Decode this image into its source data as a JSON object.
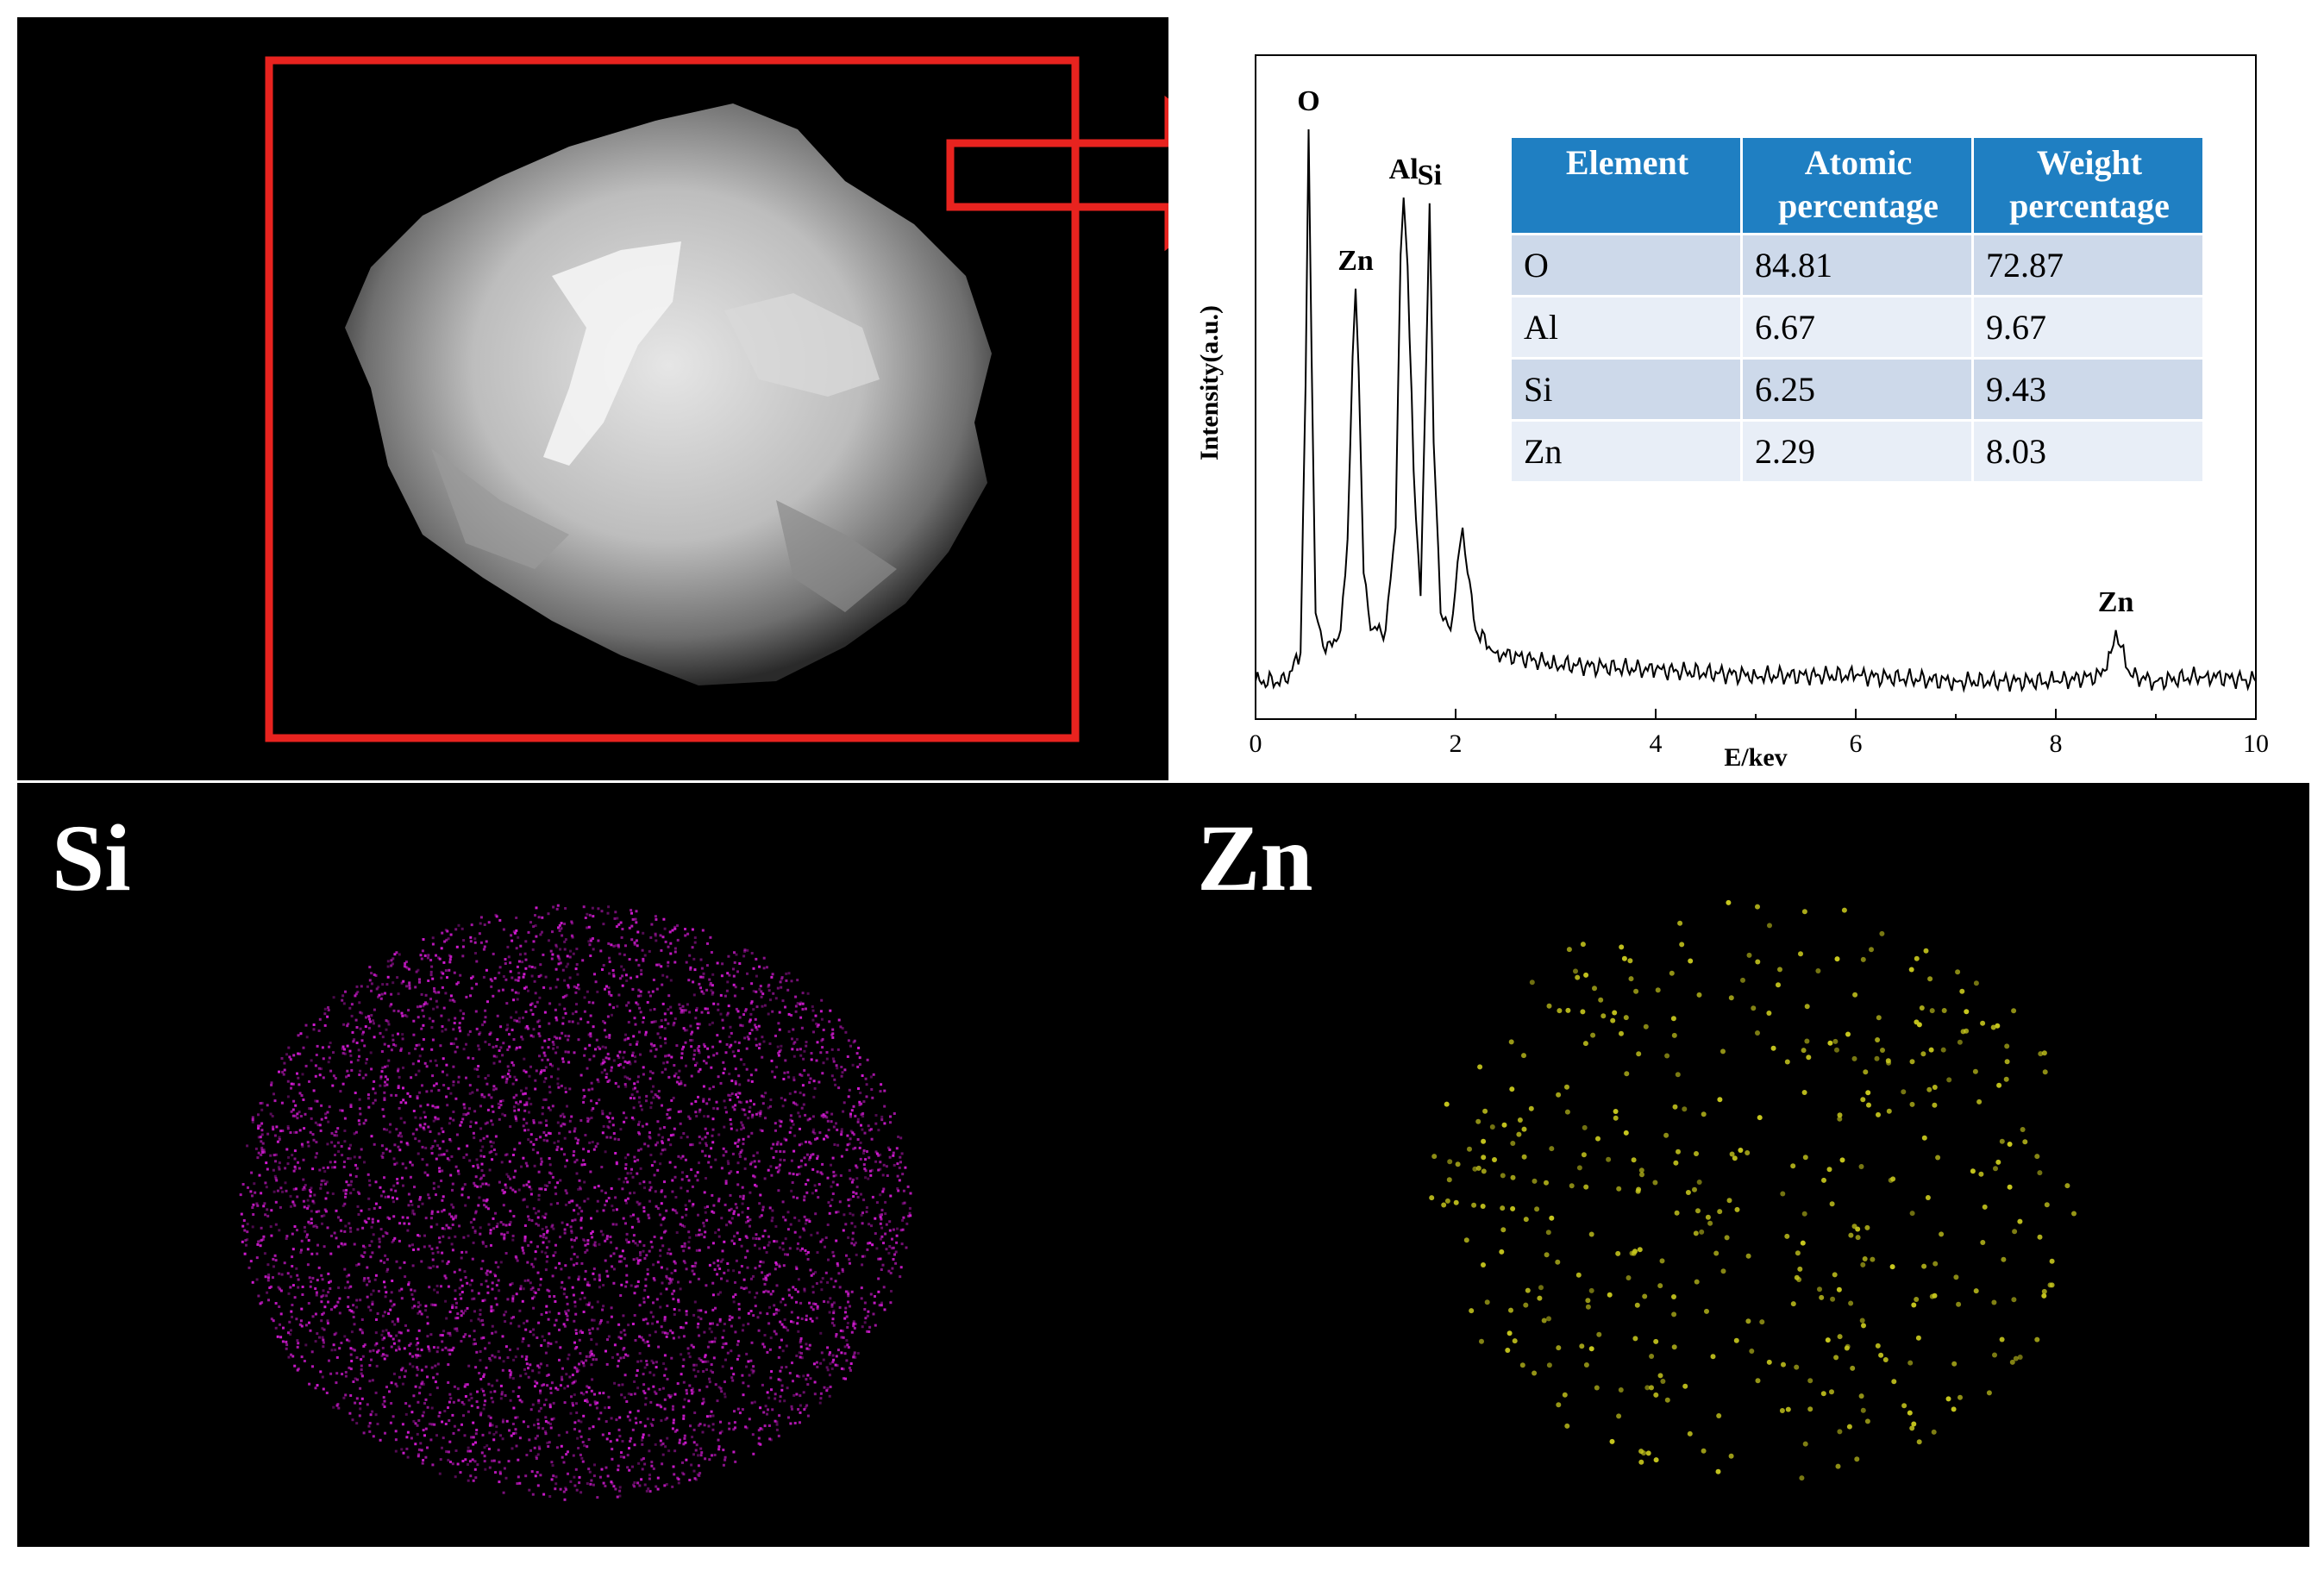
{
  "colors": {
    "frame_red": "#e8231f",
    "si_map": "#d21ad2",
    "zn_map": "#c8c81e",
    "table_header": "#1f7fc2",
    "table_row_odd": "#cdd9ea",
    "table_row_even": "#e8eef7"
  },
  "maps": {
    "si_label": "Si",
    "zn_label": "Zn"
  },
  "chart_data": {
    "type": "line",
    "xlabel": "E/kev",
    "ylabel": "Intensity(a.u.)",
    "xlim": [
      0,
      10
    ],
    "xticks": [
      "0",
      "2",
      "4",
      "6",
      "8",
      "10"
    ],
    "series": [
      {
        "x": [
          0.0,
          0.3,
          0.45,
          0.5,
          0.53,
          0.56,
          0.6,
          0.7,
          0.85,
          0.92,
          0.97,
          1.0,
          1.03,
          1.08,
          1.15,
          1.3,
          1.4,
          1.45,
          1.48,
          1.52,
          1.58,
          1.65,
          1.7,
          1.74,
          1.78,
          1.85,
          1.95,
          2.02,
          2.07,
          2.12,
          2.2,
          2.4,
          3.0,
          4.0,
          5.0,
          6.0,
          7.0,
          8.0,
          8.45,
          8.55,
          8.6,
          8.65,
          8.75,
          9.0,
          9.5,
          10.0
        ],
        "y": [
          3,
          3,
          8,
          55,
          100,
          60,
          15,
          8,
          12,
          28,
          60,
          72,
          58,
          22,
          12,
          12,
          30,
          78,
          88,
          76,
          40,
          18,
          55,
          87,
          45,
          15,
          12,
          24,
          30,
          22,
          12,
          8,
          6,
          5,
          4,
          4,
          3,
          3,
          4,
          8,
          12,
          9,
          4,
          3,
          4,
          3
        ]
      }
    ],
    "peak_labels": [
      {
        "label": "O",
        "x": 0.53
      },
      {
        "label": "Zn",
        "x": 1.0
      },
      {
        "label": "Al",
        "x": 1.48
      },
      {
        "label": "Si",
        "x": 1.74
      },
      {
        "label": "Zn",
        "x": 8.6
      }
    ],
    "table": {
      "headers": [
        [
          "Element"
        ],
        [
          "Atomic",
          "percentage"
        ],
        [
          "Weight",
          "percentage"
        ]
      ],
      "rows": [
        [
          "O",
          "84.81",
          "72.87"
        ],
        [
          "Al",
          "6.67",
          "9.67"
        ],
        [
          "Si",
          "6.25",
          "9.43"
        ],
        [
          "Zn",
          "2.29",
          "8.03"
        ]
      ]
    }
  }
}
